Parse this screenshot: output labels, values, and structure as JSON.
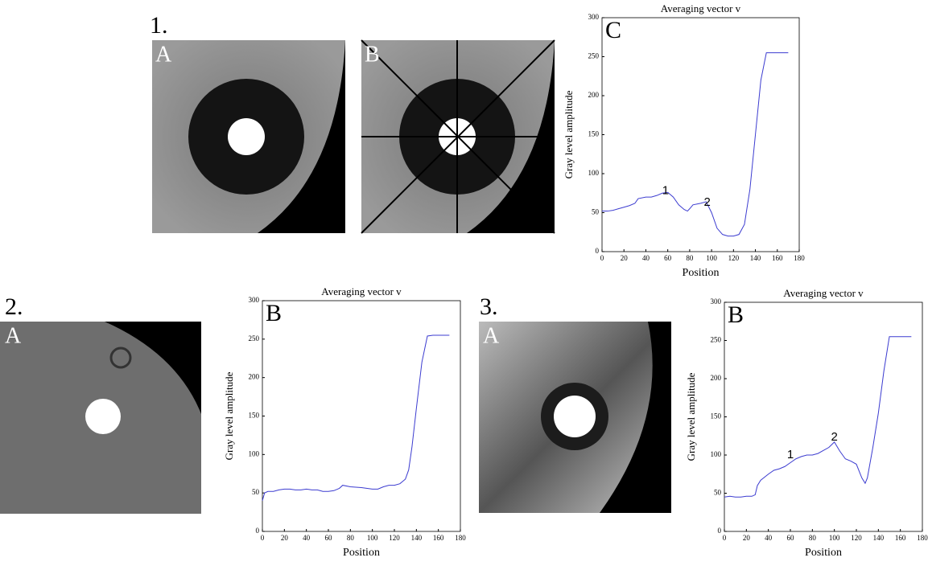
{
  "chart_data": [
    {
      "type": "line",
      "title": "Averaging vector v",
      "panel_label": "C",
      "x_label": "Position",
      "y_label": "Gray level amplitude",
      "color": "#3c3cd0",
      "x": [
        0,
        5,
        10,
        15,
        20,
        25,
        30,
        33,
        40,
        45,
        50,
        55,
        60,
        65,
        70,
        75,
        78,
        80,
        83,
        90,
        95,
        100,
        105,
        110,
        115,
        120,
        125,
        130,
        135,
        140,
        145,
        150,
        155,
        160,
        165,
        170
      ],
      "values": [
        52,
        52,
        53,
        55,
        57,
        59,
        62,
        68,
        70,
        70,
        72,
        75,
        76,
        70,
        60,
        54,
        52,
        55,
        60,
        62,
        64,
        50,
        30,
        22,
        20,
        20,
        22,
        35,
        80,
        150,
        220,
        255,
        255,
        255,
        255,
        255
      ],
      "xlim": [
        0,
        180
      ],
      "xticks": [
        0,
        20,
        40,
        60,
        80,
        100,
        120,
        140,
        160,
        180
      ],
      "ylim": [
        0,
        300
      ],
      "yticks": [
        0,
        50,
        100,
        150,
        200,
        250,
        300
      ],
      "annotations": [
        {
          "text": "1",
          "x": 58,
          "y": 78
        },
        {
          "text": "2",
          "x": 96,
          "y": 63
        }
      ]
    },
    {
      "type": "line",
      "title": "Averaging vector v",
      "panel_label": "B",
      "x_label": "Position",
      "y_label": "Gray level amplitude",
      "color": "#3c3cd0",
      "x": [
        0,
        2,
        5,
        10,
        15,
        20,
        25,
        30,
        35,
        40,
        45,
        50,
        55,
        60,
        65,
        70,
        73,
        80,
        90,
        100,
        105,
        110,
        115,
        120,
        125,
        130,
        133,
        136,
        140,
        145,
        150,
        155,
        160,
        165,
        170
      ],
      "values": [
        40,
        50,
        52,
        52,
        54,
        55,
        55,
        54,
        54,
        55,
        54,
        54,
        52,
        52,
        53,
        56,
        60,
        58,
        57,
        55,
        55,
        58,
        60,
        60,
        62,
        68,
        80,
        110,
        160,
        220,
        254,
        255,
        255,
        255,
        255
      ],
      "xlim": [
        0,
        180
      ],
      "xticks": [
        0,
        20,
        40,
        60,
        80,
        100,
        120,
        140,
        160,
        180
      ],
      "ylim": [
        0,
        300
      ],
      "yticks": [
        0,
        50,
        100,
        150,
        200,
        250,
        300
      ],
      "annotations": []
    },
    {
      "type": "line",
      "title": "Averaging vector v",
      "panel_label": "B",
      "x_label": "Position",
      "y_label": "Gray level amplitude",
      "color": "#3c3cd0",
      "x": [
        0,
        5,
        10,
        15,
        20,
        25,
        28,
        30,
        33,
        40,
        45,
        50,
        55,
        60,
        65,
        70,
        75,
        80,
        85,
        90,
        95,
        100,
        105,
        110,
        115,
        120,
        125,
        128,
        130,
        135,
        140,
        145,
        150,
        155,
        160,
        165,
        170
      ],
      "values": [
        45,
        46,
        45,
        45,
        46,
        46,
        48,
        60,
        67,
        75,
        80,
        82,
        85,
        90,
        95,
        98,
        100,
        100,
        102,
        106,
        110,
        117,
        105,
        95,
        92,
        88,
        70,
        63,
        70,
        110,
        155,
        210,
        255,
        255,
        255,
        255,
        255
      ],
      "xlim": [
        0,
        180
      ],
      "xticks": [
        0,
        20,
        40,
        60,
        80,
        100,
        120,
        140,
        160,
        180
      ],
      "ylim": [
        0,
        300
      ],
      "yticks": [
        0,
        50,
        100,
        150,
        200,
        250,
        300
      ],
      "annotations": [
        {
          "text": "1",
          "x": 60,
          "y": 100
        },
        {
          "text": "2",
          "x": 100,
          "y": 123
        }
      ]
    }
  ],
  "panels": [
    {
      "number": "1.",
      "images": [
        "A",
        "B"
      ]
    },
    {
      "number": "2.",
      "images": [
        "A"
      ]
    },
    {
      "number": "3.",
      "images": [
        "A"
      ]
    }
  ]
}
